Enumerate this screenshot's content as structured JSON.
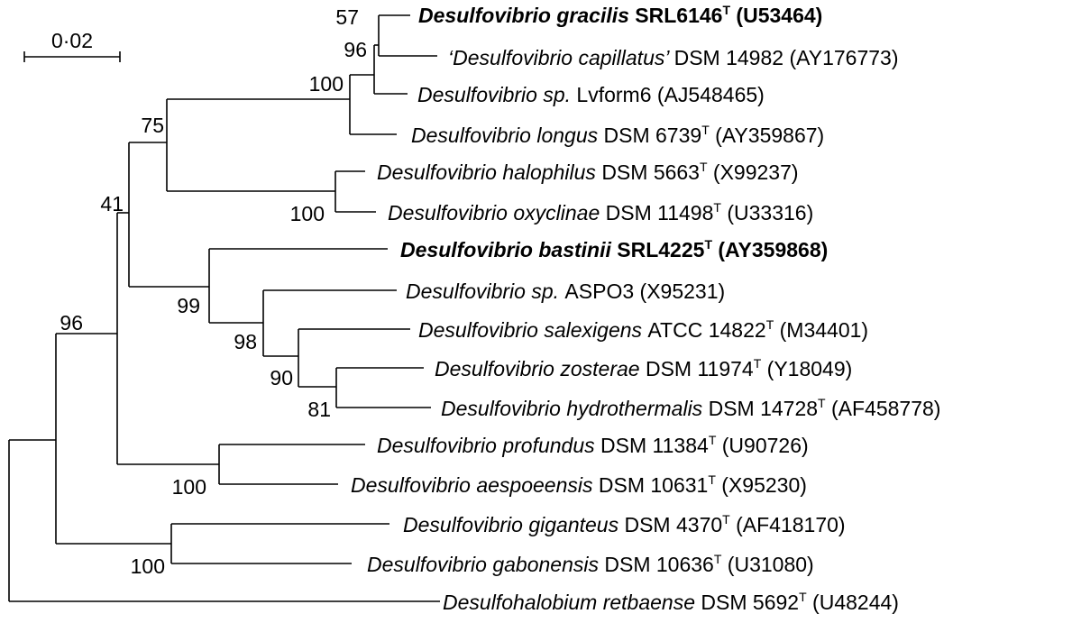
{
  "scale_bar": {
    "label": "0·02"
  },
  "taxa": [
    {
      "quote_open": "",
      "genus": "Desulfovibrio",
      "species": "gracilis",
      "strain": "SRL6146",
      "type_strain": true,
      "accession": "(U53464)",
      "bold": true
    },
    {
      "quote_open": "‘",
      "genus": "Desulfovibrio",
      "species": "capillatus’",
      "strain": "DSM 14982",
      "type_strain": false,
      "accession": "(AY176773)",
      "bold": false
    },
    {
      "quote_open": "",
      "genus": "Desulfovibrio",
      "species": "sp.",
      "strain": "Lvform6",
      "type_strain": false,
      "accession": "(AJ548465)",
      "bold": false
    },
    {
      "quote_open": "",
      "genus": "Desulfovibrio",
      "species": "longus",
      "strain": "DSM 6739",
      "type_strain": true,
      "accession": "(AY359867)",
      "bold": false
    },
    {
      "quote_open": "",
      "genus": "Desulfovibrio",
      "species": "halophilus",
      "strain": "DSM 5663",
      "type_strain": true,
      "accession": "(X99237)",
      "bold": false
    },
    {
      "quote_open": "",
      "genus": "Desulfovibrio",
      "species": "oxyclinae",
      "strain": "DSM 11498",
      "type_strain": true,
      "accession": "(U33316)",
      "bold": false
    },
    {
      "quote_open": "",
      "genus": "Desulfovibrio",
      "species": "bastinii",
      "strain": "SRL4225",
      "type_strain": true,
      "accession": "(AY359868)",
      "bold": true
    },
    {
      "quote_open": "",
      "genus": "Desulfovibrio",
      "species": "sp.",
      "strain": "ASPO3",
      "type_strain": false,
      "accession": "(X95231)",
      "bold": false
    },
    {
      "quote_open": "",
      "genus": "Desulfovibrio",
      "species": "salexigens",
      "strain": "ATCC 14822",
      "type_strain": true,
      "accession": "(M34401)",
      "bold": false
    },
    {
      "quote_open": "",
      "genus": "Desulfovibrio",
      "species": "zosterae",
      "strain": "DSM 11974",
      "type_strain": true,
      "accession": "(Y18049)",
      "bold": false
    },
    {
      "quote_open": "",
      "genus": "Desulfovibrio",
      "species": "hydrothermalis",
      "strain": "DSM 14728",
      "type_strain": true,
      "accession": "(AF458778)",
      "bold": false
    },
    {
      "quote_open": "",
      "genus": "Desulfovibrio",
      "species": "profundus",
      "strain": "DSM 11384",
      "type_strain": true,
      "accession": "(U90726)",
      "bold": false
    },
    {
      "quote_open": "",
      "genus": "Desulfovibrio",
      "species": "aespoeensis",
      "strain": "DSM 10631",
      "type_strain": true,
      "accession": "(X95230)",
      "bold": false
    },
    {
      "quote_open": "",
      "genus": "Desulfovibrio",
      "species": "giganteus",
      "strain": "DSM 4370",
      "type_strain": true,
      "accession": "(AF418170)",
      "bold": false
    },
    {
      "quote_open": "",
      "genus": "Desulfovibrio",
      "species": "gabonensis",
      "strain": "DSM 10636",
      "type_strain": true,
      "accession": "(U31080)",
      "bold": false
    },
    {
      "quote_open": "",
      "genus": "Desulfohalobium",
      "species": "retbaense",
      "strain": "DSM 5692",
      "type_strain": true,
      "accession": "(U48244)",
      "bold": false
    }
  ],
  "type_marker": "T",
  "bootstrap": [
    "57",
    "96",
    "100",
    "75",
    "100",
    "41",
    "99",
    "98",
    "90",
    "81",
    "100",
    "96",
    "100"
  ]
}
